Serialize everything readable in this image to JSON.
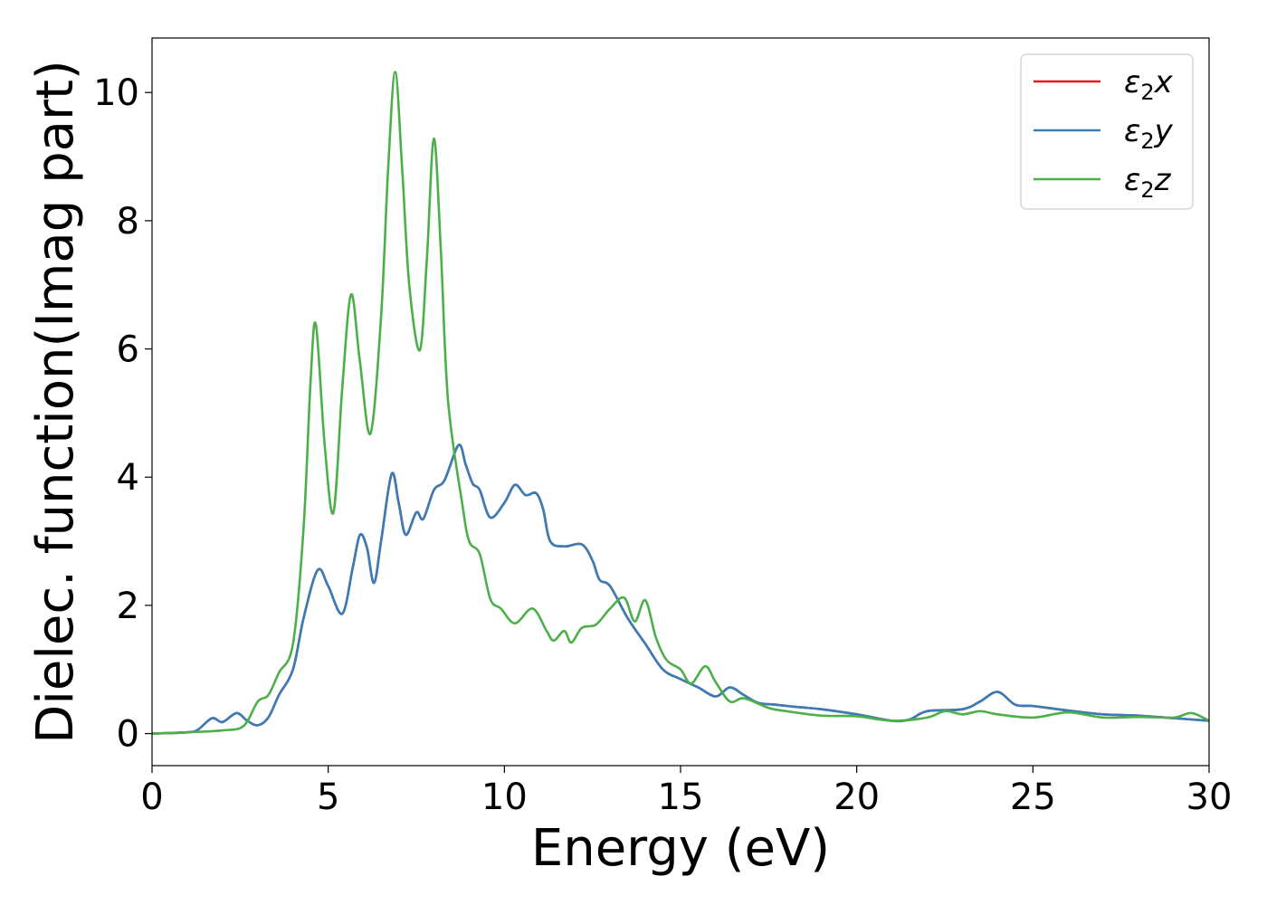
{
  "chart_data": {
    "type": "line",
    "xlabel": "Energy (eV)",
    "ylabel": "Dielec. function(Imag part)",
    "xlim": [
      0,
      30
    ],
    "ylim": [
      -0.5,
      10.85
    ],
    "x_ticks": [
      0,
      5,
      10,
      15,
      20,
      25,
      30
    ],
    "x_tick_labels": [
      "0",
      "5",
      "10",
      "15",
      "20",
      "25",
      "30"
    ],
    "y_ticks": [
      0,
      2,
      4,
      6,
      8,
      10
    ],
    "y_tick_labels": [
      "0",
      "2",
      "4",
      "6",
      "8",
      "10"
    ],
    "grid": false,
    "legend_position": "top-right",
    "series": [
      {
        "name": "ε2x",
        "legend_base": "ε",
        "legend_sub": "2",
        "legend_suffix": "x",
        "color": "#e41a1c",
        "data_ref": "xy"
      },
      {
        "name": "ε2y",
        "legend_base": "ε",
        "legend_sub": "2",
        "legend_suffix": "y",
        "color": "#377eb8",
        "data_ref": "xy"
      },
      {
        "name": "ε2z",
        "legend_base": "ε",
        "legend_sub": "2",
        "legend_suffix": "z",
        "color": "#4daf4a",
        "data_ref": "z"
      }
    ],
    "data": {
      "xy": [
        [
          0,
          0.0
        ],
        [
          1.0,
          0.02
        ],
        [
          1.3,
          0.06
        ],
        [
          1.7,
          0.24
        ],
        [
          2.0,
          0.18
        ],
        [
          2.4,
          0.32
        ],
        [
          2.7,
          0.2
        ],
        [
          3.0,
          0.13
        ],
        [
          3.3,
          0.25
        ],
        [
          3.6,
          0.6
        ],
        [
          4.0,
          1.0
        ],
        [
          4.3,
          1.8
        ],
        [
          4.7,
          2.55
        ],
        [
          5.0,
          2.3
        ],
        [
          5.4,
          1.87
        ],
        [
          5.7,
          2.6
        ],
        [
          5.9,
          3.1
        ],
        [
          6.1,
          2.9
        ],
        [
          6.3,
          2.35
        ],
        [
          6.5,
          3.0
        ],
        [
          6.8,
          4.05
        ],
        [
          7.0,
          3.6
        ],
        [
          7.2,
          3.1
        ],
        [
          7.5,
          3.45
        ],
        [
          7.7,
          3.35
        ],
        [
          8.0,
          3.8
        ],
        [
          8.3,
          3.95
        ],
        [
          8.7,
          4.5
        ],
        [
          8.9,
          4.2
        ],
        [
          9.1,
          3.9
        ],
        [
          9.3,
          3.8
        ],
        [
          9.6,
          3.37
        ],
        [
          10.0,
          3.6
        ],
        [
          10.3,
          3.88
        ],
        [
          10.6,
          3.72
        ],
        [
          10.9,
          3.75
        ],
        [
          11.1,
          3.5
        ],
        [
          11.3,
          3.0
        ],
        [
          11.7,
          2.92
        ],
        [
          12.2,
          2.95
        ],
        [
          12.5,
          2.7
        ],
        [
          12.7,
          2.4
        ],
        [
          13.0,
          2.3
        ],
        [
          13.5,
          1.8
        ],
        [
          14.0,
          1.4
        ],
        [
          14.5,
          1.0
        ],
        [
          15.0,
          0.85
        ],
        [
          15.5,
          0.72
        ],
        [
          16.0,
          0.58
        ],
        [
          16.4,
          0.72
        ],
        [
          16.8,
          0.6
        ],
        [
          17.2,
          0.48
        ],
        [
          17.7,
          0.45
        ],
        [
          18.2,
          0.42
        ],
        [
          19.0,
          0.38
        ],
        [
          20.0,
          0.3
        ],
        [
          21.0,
          0.2
        ],
        [
          21.5,
          0.22
        ],
        [
          22.0,
          0.35
        ],
        [
          23.0,
          0.38
        ],
        [
          23.5,
          0.5
        ],
        [
          24.0,
          0.65
        ],
        [
          24.5,
          0.45
        ],
        [
          25.0,
          0.43
        ],
        [
          26.0,
          0.36
        ],
        [
          27.0,
          0.3
        ],
        [
          28.0,
          0.28
        ],
        [
          29.0,
          0.24
        ],
        [
          30.0,
          0.2
        ]
      ],
      "z": [
        [
          0,
          0.0
        ],
        [
          1.0,
          0.02
        ],
        [
          2.0,
          0.05
        ],
        [
          2.6,
          0.12
        ],
        [
          3.0,
          0.5
        ],
        [
          3.3,
          0.6
        ],
        [
          3.6,
          0.95
        ],
        [
          4.0,
          1.4
        ],
        [
          4.3,
          3.2
        ],
        [
          4.5,
          5.5
        ],
        [
          4.65,
          6.38
        ],
        [
          4.9,
          4.5
        ],
        [
          5.15,
          3.45
        ],
        [
          5.4,
          5.4
        ],
        [
          5.65,
          6.85
        ],
        [
          5.9,
          5.8
        ],
        [
          6.2,
          4.68
        ],
        [
          6.5,
          6.5
        ],
        [
          6.7,
          8.8
        ],
        [
          6.9,
          10.32
        ],
        [
          7.1,
          8.8
        ],
        [
          7.3,
          7.0
        ],
        [
          7.6,
          5.98
        ],
        [
          7.8,
          7.4
        ],
        [
          8.0,
          9.28
        ],
        [
          8.2,
          7.5
        ],
        [
          8.4,
          5.2
        ],
        [
          8.8,
          3.6
        ],
        [
          9.0,
          3.0
        ],
        [
          9.3,
          2.8
        ],
        [
          9.6,
          2.1
        ],
        [
          9.9,
          1.95
        ],
        [
          10.3,
          1.72
        ],
        [
          10.8,
          1.95
        ],
        [
          11.2,
          1.6
        ],
        [
          11.4,
          1.45
        ],
        [
          11.7,
          1.6
        ],
        [
          11.9,
          1.42
        ],
        [
          12.2,
          1.65
        ],
        [
          12.6,
          1.7
        ],
        [
          13.0,
          1.95
        ],
        [
          13.4,
          2.12
        ],
        [
          13.7,
          1.75
        ],
        [
          14.0,
          2.08
        ],
        [
          14.3,
          1.5
        ],
        [
          14.6,
          1.15
        ],
        [
          15.0,
          1.0
        ],
        [
          15.3,
          0.78
        ],
        [
          15.7,
          1.05
        ],
        [
          16.0,
          0.8
        ],
        [
          16.4,
          0.5
        ],
        [
          16.8,
          0.55
        ],
        [
          17.5,
          0.4
        ],
        [
          18.0,
          0.35
        ],
        [
          19.0,
          0.28
        ],
        [
          20.0,
          0.27
        ],
        [
          21.0,
          0.2
        ],
        [
          22.0,
          0.25
        ],
        [
          22.5,
          0.35
        ],
        [
          23.0,
          0.3
        ],
        [
          23.5,
          0.35
        ],
        [
          24.0,
          0.3
        ],
        [
          25.0,
          0.25
        ],
        [
          26.0,
          0.33
        ],
        [
          27.0,
          0.25
        ],
        [
          28.0,
          0.26
        ],
        [
          29.0,
          0.25
        ],
        [
          29.5,
          0.32
        ],
        [
          30.0,
          0.2
        ]
      ]
    }
  }
}
